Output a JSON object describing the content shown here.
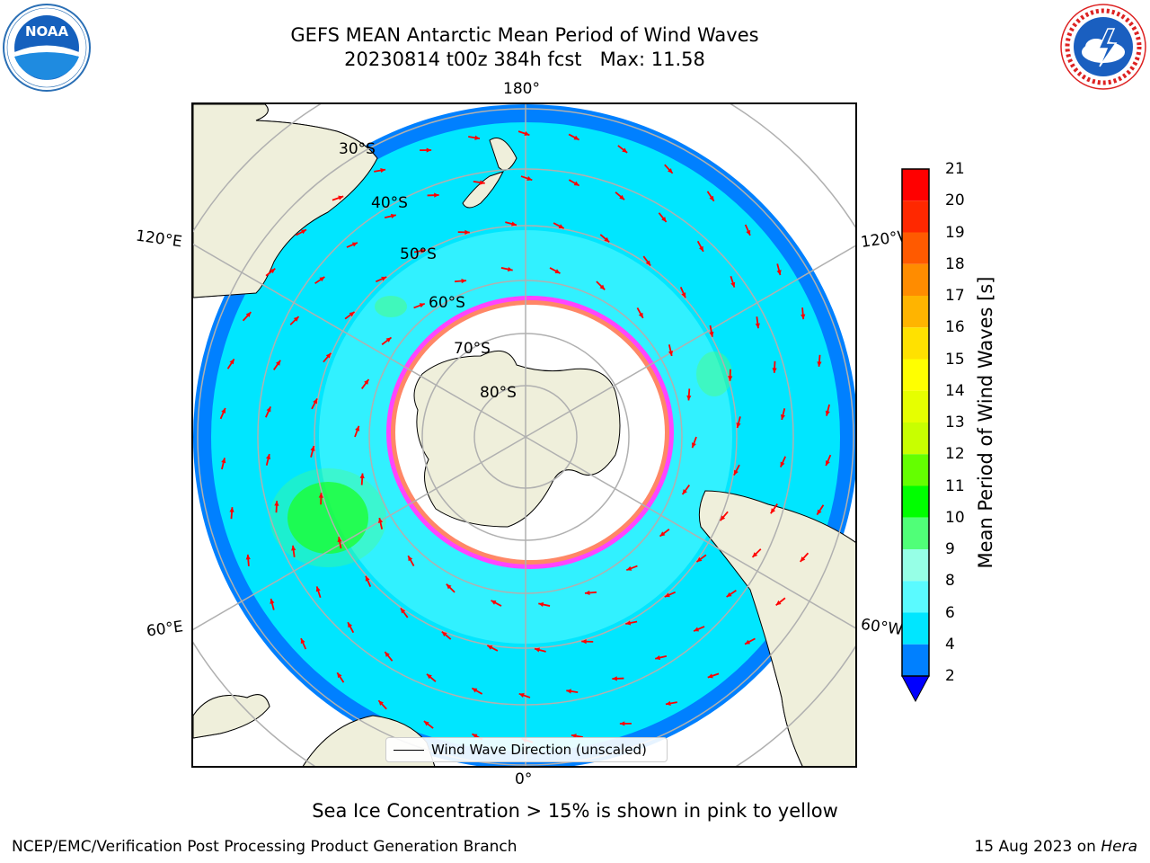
{
  "header": {
    "title_line1": "GEFS MEAN Antarctic Mean Period of Wind Waves",
    "title_line2": "20230814 t00z 384h fcst   Max: 11.58"
  },
  "logos": {
    "noaa_text": "NOAA",
    "noaa_ring": "NATIONAL OCEANIC AND ATMOSPHERIC ADMINISTRATION · U.S. DEPARTMENT OF COMMERCE",
    "nws_ring": "NATIONAL WEATHER SERVICE"
  },
  "map": {
    "projection": "south polar stereographic",
    "longitude_labels": {
      "top": "180°",
      "bottom": "0°",
      "upper_left": "120°E",
      "upper_right": "120°W",
      "lower_left": "60°E",
      "lower_right": "60°W"
    },
    "latitude_labels": [
      "30°S",
      "40°S",
      "50°S",
      "60°S",
      "70°S",
      "80°S"
    ],
    "legend_label": "Wind Wave Direction (unscaled)",
    "colors": {
      "land": "#efefdb",
      "ocean_main": "#00f0ff",
      "ocean_light": "#5efcff",
      "ocean_deep": "#0080ff",
      "swell_high": "#4efc6a",
      "arrows": "#ff0000",
      "sea_ice": "#ff44ff",
      "graticule": "#b0b0b0"
    }
  },
  "colorbar": {
    "label": "Mean Period of Wind Waves [s]",
    "ticks": [
      "21",
      "20",
      "19",
      "18",
      "17",
      "16",
      "15",
      "14",
      "13",
      "12",
      "11",
      "10",
      "9",
      "8",
      "6",
      "4",
      "2"
    ],
    "colors": [
      "#ff0000",
      "#ff2800",
      "#ff5a00",
      "#ff8c00",
      "#ffb400",
      "#ffe100",
      "#ffff00",
      "#e6ff00",
      "#c8ff00",
      "#64ff00",
      "#00ff00",
      "#50ff78",
      "#96ffe6",
      "#5afaff",
      "#00e6ff",
      "#0080ff"
    ],
    "extend_color": "#0000ff"
  },
  "caption": "Sea Ice Concentration > 15% is shown in pink to yellow",
  "footer": {
    "left": "NCEP/EMC/Verification Post Processing Product Generation Branch",
    "right_date": "15 Aug 2023 on ",
    "right_host": "Hera"
  }
}
